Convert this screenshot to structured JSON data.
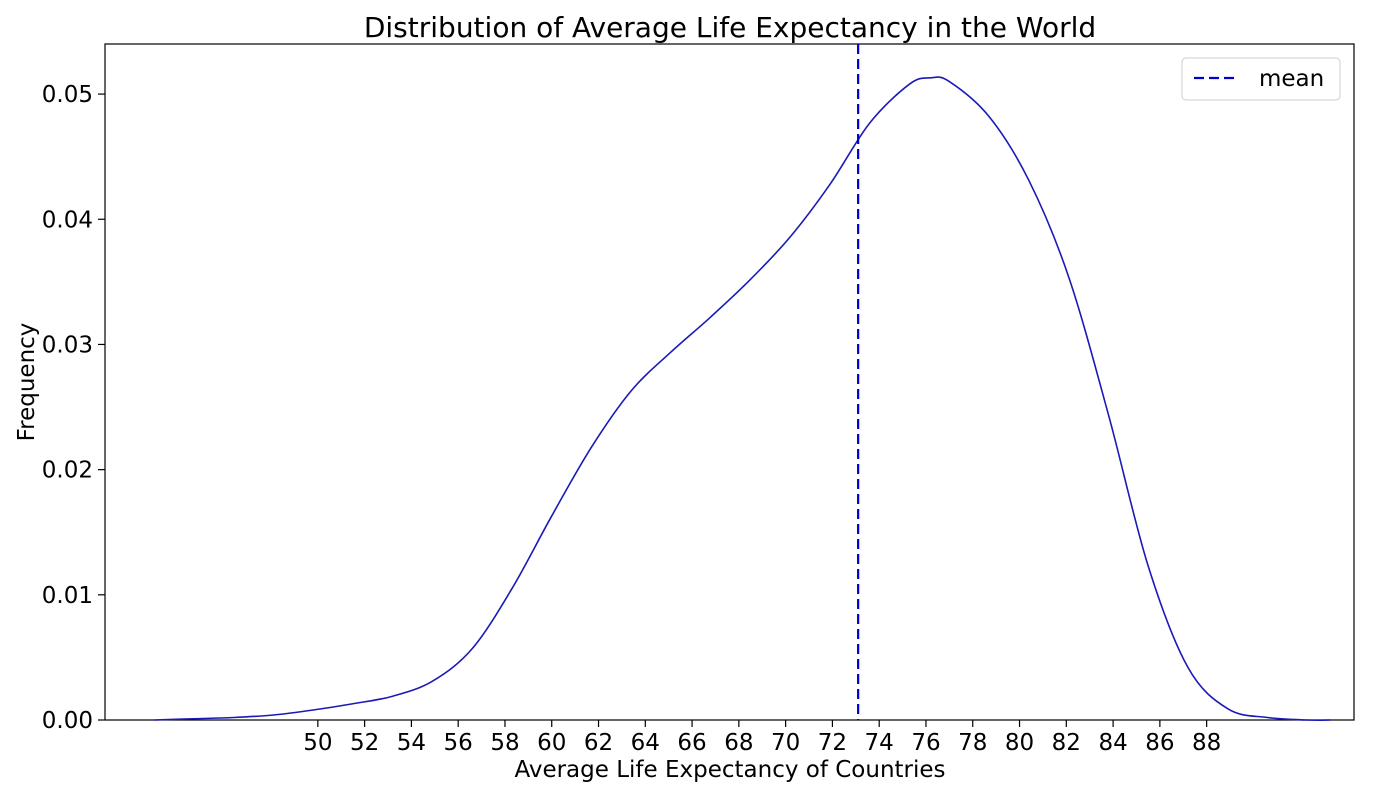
{
  "chart_data": {
    "type": "line",
    "title": "Distribution of Average Life Expectancy in the World",
    "xlabel": "Average Life Expectancy of Countries",
    "ylabel": "Frequency",
    "xlim": [
      40.9,
      94.3
    ],
    "ylim": [
      0,
      0.054
    ],
    "x_ticks": [
      50,
      52,
      54,
      56,
      58,
      60,
      62,
      64,
      66,
      68,
      70,
      72,
      74,
      76,
      78,
      80,
      82,
      84,
      86,
      88
    ],
    "y_ticks": [
      0.0,
      0.01,
      0.02,
      0.03,
      0.04,
      0.05
    ],
    "y_tick_labels": [
      "0.00",
      "0.01",
      "0.02",
      "0.03",
      "0.04",
      "0.05"
    ],
    "grid": false,
    "legend": {
      "position": "top-right",
      "entries": [
        {
          "label": "mean",
          "color": "#0000cc",
          "style": "dashed"
        }
      ]
    },
    "series": [
      {
        "color": "#1a1ab8",
        "x": [
          43.0,
          44.7,
          46.4,
          48.1,
          49.8,
          51.5,
          53.2,
          54.9,
          56.6,
          58.3,
          60.0,
          61.7,
          63.4,
          65.1,
          66.8,
          68.5,
          70.2,
          71.9,
          73.6,
          75.3,
          76.2,
          77.0,
          78.7,
          80.4,
          82.1,
          83.8,
          85.5,
          87.2,
          88.9,
          90.6,
          92.3,
          93.3
        ],
        "y": [
          0.0,
          0.0001,
          0.0002,
          0.0004,
          0.0008,
          0.0013,
          0.0019,
          0.0031,
          0.0057,
          0.0105,
          0.0163,
          0.0218,
          0.0263,
          0.0294,
          0.0322,
          0.0352,
          0.0386,
          0.0428,
          0.0477,
          0.0508,
          0.0513,
          0.051,
          0.0482,
          0.0431,
          0.0354,
          0.0244,
          0.0123,
          0.0042,
          0.0009,
          0.0002,
          0.0,
          0.0
        ]
      }
    ],
    "mean_line": {
      "x": 73.1,
      "label": "mean",
      "color": "#0000cc",
      "style": "dashed"
    }
  }
}
